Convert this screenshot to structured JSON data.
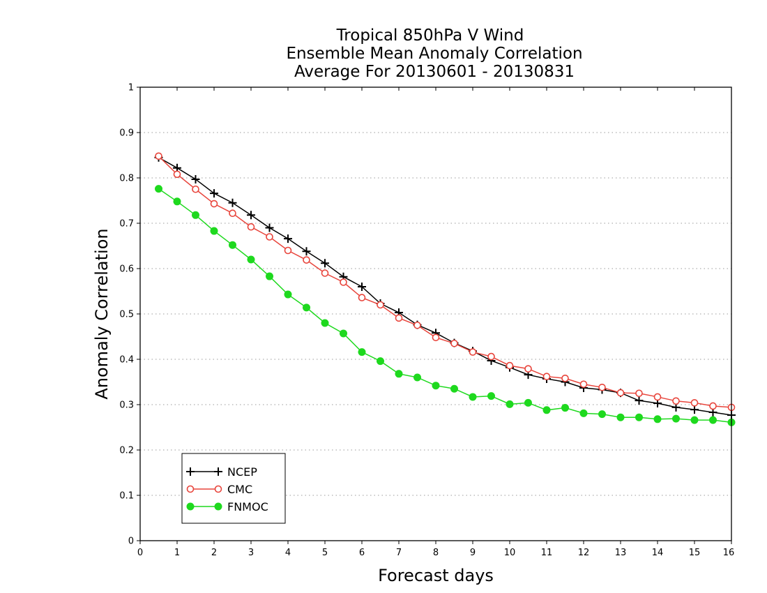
{
  "chart_data": {
    "type": "line",
    "title_lines": [
      "Tropical 850hPa V Wind",
      "Ensemble Mean Anomaly Correlation",
      "Average For 20130601 - 20130831"
    ],
    "xlabel": "Forecast days",
    "ylabel": "Anomaly Correlation",
    "xlim": [
      0,
      16
    ],
    "ylim": [
      0,
      1
    ],
    "x_ticks": [
      "0",
      "1",
      "2",
      "3",
      "4",
      "5",
      "6",
      "7",
      "8",
      "9",
      "10",
      "11",
      "12",
      "13",
      "14",
      "15",
      "16"
    ],
    "y_ticks": [
      "0",
      "0.1",
      "0.2",
      "0.3",
      "0.4",
      "0.5",
      "0.6",
      "0.7",
      "0.8",
      "0.9",
      "1"
    ],
    "grid": "horizontal dotted",
    "legend_position": "bottom-left",
    "x": [
      0.5,
      1,
      1.5,
      2,
      2.5,
      3,
      3.5,
      4,
      4.5,
      5,
      5.5,
      6,
      6.5,
      7,
      7.5,
      8,
      8.5,
      9,
      9.5,
      10,
      10.5,
      11,
      11.5,
      12,
      12.5,
      13,
      13.5,
      14,
      14.5,
      15,
      15.5,
      16
    ],
    "series": [
      {
        "name": "NCEP",
        "color": "#000000",
        "marker": "plus",
        "values": [
          0.845,
          0.822,
          0.797,
          0.766,
          0.745,
          0.718,
          0.69,
          0.666,
          0.638,
          0.612,
          0.582,
          0.56,
          0.523,
          0.503,
          0.476,
          0.458,
          0.436,
          0.418,
          0.397,
          0.382,
          0.366,
          0.357,
          0.35,
          0.337,
          0.333,
          0.326,
          0.309,
          0.303,
          0.294,
          0.289,
          0.283,
          0.277
        ]
      },
      {
        "name": "CMC",
        "color": "#e8453c",
        "marker": "open-circle",
        "values": [
          0.848,
          0.808,
          0.775,
          0.743,
          0.722,
          0.692,
          0.67,
          0.64,
          0.619,
          0.59,
          0.57,
          0.536,
          0.52,
          0.491,
          0.475,
          0.448,
          0.435,
          0.416,
          0.406,
          0.386,
          0.379,
          0.362,
          0.358,
          0.345,
          0.338,
          0.326,
          0.325,
          0.317,
          0.308,
          0.304,
          0.297,
          0.294
        ]
      },
      {
        "name": "FNMOC",
        "color": "#1ed91e",
        "marker": "filled-circle",
        "values": [
          0.776,
          0.748,
          0.718,
          0.683,
          0.652,
          0.62,
          0.583,
          0.543,
          0.514,
          0.48,
          0.457,
          0.416,
          0.396,
          0.368,
          0.36,
          0.342,
          0.335,
          0.317,
          0.319,
          0.301,
          0.304,
          0.288,
          0.293,
          0.281,
          0.279,
          0.272,
          0.272,
          0.268,
          0.269,
          0.266,
          0.266,
          0.261
        ]
      }
    ]
  }
}
